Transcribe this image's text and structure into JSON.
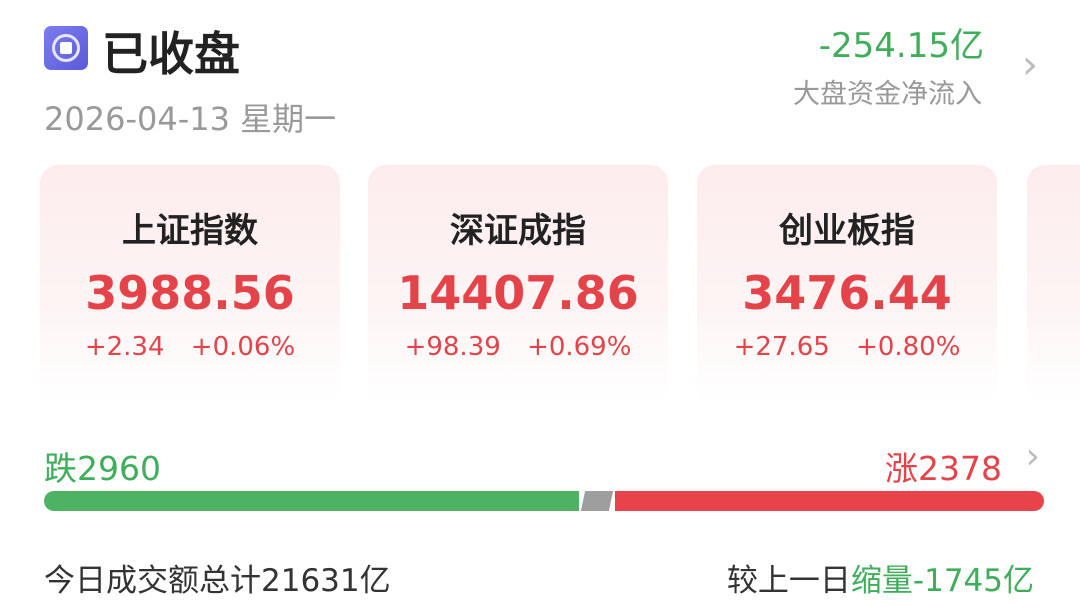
{
  "header": {
    "status": "已收盘",
    "date": "2026-04-13",
    "weekday": "星期一",
    "net_flow_value": "-254.15亿",
    "net_flow_label": "大盘资金净流入"
  },
  "indices": [
    {
      "name": "上证指数",
      "value": "3988.56",
      "change": "+2.34",
      "pct": "+0.06%"
    },
    {
      "name": "深证成指",
      "value": "14407.86",
      "change": "+98.39",
      "pct": "+0.69%"
    },
    {
      "name": "创业板指",
      "value": "3476.44",
      "change": "+27.65",
      "pct": "+0.80%"
    }
  ],
  "breadth": {
    "fall_label": "跌",
    "fall_count": "2960",
    "rise_label": "涨",
    "rise_count": "2378"
  },
  "turnover": {
    "label": "今日成交额总计",
    "total": "21631亿",
    "compare_label": "较上一日",
    "trend": "缩量",
    "delta": "-1745亿"
  },
  "colors": {
    "up": "#e5434a",
    "down": "#3fae5a",
    "flat": "#9e9e9e",
    "status_icon": "#6b6be4"
  }
}
